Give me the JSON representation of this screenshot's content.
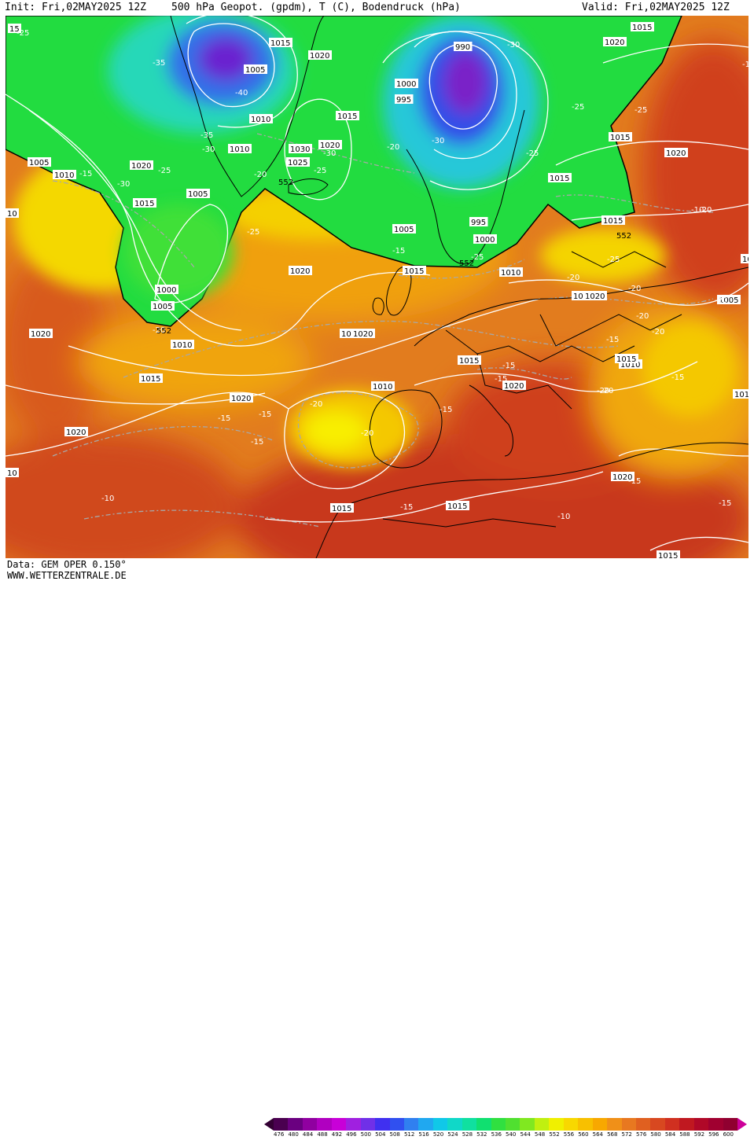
{
  "header": {
    "init": "Init: Fri,02MAY2025 12Z",
    "title": "500 hPa Geopot. (gpdm), T (C), Bodendruck (hPa)",
    "valid": "Valid: Fri,02MAY2025 12Z"
  },
  "footer": {
    "model": "Data: GEM OPER 0.150°",
    "site": "WWW.WETTERZENTRALE.DE"
  },
  "colors": {
    "ocean_base": "#e07a1e",
    "deep_red": "#c8341c",
    "yellow": "#f5e600",
    "green": "#22e040",
    "cyan": "#28d6b8",
    "blue": "#3050e8",
    "purple": "#7a20c8",
    "pressure_isobar": "#ffffff",
    "temperature_isotherm": "#a0a0a0",
    "coastline": "#000000"
  },
  "colorbar": {
    "values": [
      "476",
      "480",
      "484",
      "488",
      "492",
      "496",
      "500",
      "504",
      "508",
      "512",
      "516",
      "520",
      "524",
      "528",
      "532",
      "536",
      "540",
      "544",
      "548",
      "552",
      "556",
      "560",
      "564",
      "568",
      "572",
      "576",
      "580",
      "584",
      "588",
      "592",
      "596",
      "600"
    ],
    "colors": [
      "#4a0050",
      "#6a0080",
      "#9000a0",
      "#b000c0",
      "#c800d8",
      "#a020e0",
      "#7030e8",
      "#4030f0",
      "#3050f0",
      "#3080f0",
      "#20a8f0",
      "#10c8e8",
      "#10d8c8",
      "#10e0a0",
      "#10e070",
      "#30e040",
      "#50e030",
      "#80e820",
      "#c0f010",
      "#f0f000",
      "#f8d800",
      "#f8c000",
      "#f8a800",
      "#f09018",
      "#e87820",
      "#e06020",
      "#d84820",
      "#d03020",
      "#c01820",
      "#b00828",
      "#a00030",
      "#900030"
    ]
  },
  "map_labels": {
    "pressure": [
      {
        "t": "1015"
      },
      {
        "t": "1005"
      },
      {
        "t": "1020"
      },
      {
        "t": "990"
      },
      {
        "t": "1020"
      },
      {
        "t": "1015"
      },
      {
        "t": "1000"
      },
      {
        "t": "995"
      },
      {
        "t": "1010"
      },
      {
        "t": "1015"
      },
      {
        "t": "1030"
      },
      {
        "t": "1025"
      },
      {
        "t": "1020"
      },
      {
        "t": "1010"
      },
      {
        "t": "1005"
      },
      {
        "t": "1010"
      },
      {
        "t": "1020"
      },
      {
        "t": "1015"
      },
      {
        "t": "1015"
      },
      {
        "t": "1005"
      },
      {
        "t": "1015"
      },
      {
        "t": "1020"
      },
      {
        "t": "1015"
      },
      {
        "t": "995"
      },
      {
        "t": "1000"
      },
      {
        "t": "1005"
      },
      {
        "t": "1000"
      },
      {
        "t": "1005"
      },
      {
        "t": "1020"
      },
      {
        "t": "1015"
      },
      {
        "t": "1010"
      },
      {
        "t": "1020"
      },
      {
        "t": "1010"
      },
      {
        "t": "1015"
      },
      {
        "t": "1010"
      },
      {
        "t": "1015"
      },
      {
        "t": "1020"
      },
      {
        "t": "1020"
      },
      {
        "t": "1005"
      },
      {
        "t": "1010"
      },
      {
        "t": "1015"
      },
      {
        "t": "1010"
      },
      {
        "t": "1020"
      },
      {
        "t": "1020"
      },
      {
        "t": "1020"
      },
      {
        "t": "1020"
      },
      {
        "t": "1015"
      },
      {
        "t": "1015"
      },
      {
        "t": "1015"
      },
      {
        "t": "10"
      },
      {
        "t": "1015"
      },
      {
        "t": "1010"
      },
      {
        "t": "15"
      },
      {
        "t": "10"
      },
      {
        "t": "10"
      }
    ],
    "temperature": [
      {
        "t": "-25"
      },
      {
        "t": "-35"
      },
      {
        "t": "-40"
      },
      {
        "t": "-35"
      },
      {
        "t": "-30"
      },
      {
        "t": "-25"
      },
      {
        "t": "-30"
      },
      {
        "t": "-25"
      },
      {
        "t": "-20"
      },
      {
        "t": "-15"
      },
      {
        "t": "-25"
      },
      {
        "t": "-30"
      },
      {
        "t": "-25"
      },
      {
        "t": "-20"
      },
      {
        "t": "-25"
      },
      {
        "t": "-30"
      },
      {
        "t": "-25"
      },
      {
        "t": "-30"
      },
      {
        "t": "-25"
      },
      {
        "t": "-15"
      },
      {
        "t": "-25"
      },
      {
        "t": "-20"
      },
      {
        "t": "-20"
      },
      {
        "t": "-20"
      },
      {
        "t": "-20"
      },
      {
        "t": "-20"
      },
      {
        "t": "-20"
      },
      {
        "t": "-20"
      },
      {
        "t": "-15"
      },
      {
        "t": "-15"
      },
      {
        "t": "-15"
      },
      {
        "t": "-20"
      },
      {
        "t": "-20"
      },
      {
        "t": "-15"
      },
      {
        "t": "-20"
      },
      {
        "t": "-15"
      },
      {
        "t": "-20"
      },
      {
        "t": "-15"
      },
      {
        "t": "-15"
      },
      {
        "t": "-15"
      },
      {
        "t": "-10"
      },
      {
        "t": "-10"
      },
      {
        "t": "-15"
      },
      {
        "t": "-10"
      },
      {
        "t": "-10"
      },
      {
        "t": "-2"
      },
      {
        "t": "-15"
      },
      {
        "t": "-15"
      }
    ],
    "geopotential": [
      {
        "t": "552"
      },
      {
        "t": "552"
      },
      {
        "t": "552"
      },
      {
        "t": "552"
      }
    ]
  }
}
